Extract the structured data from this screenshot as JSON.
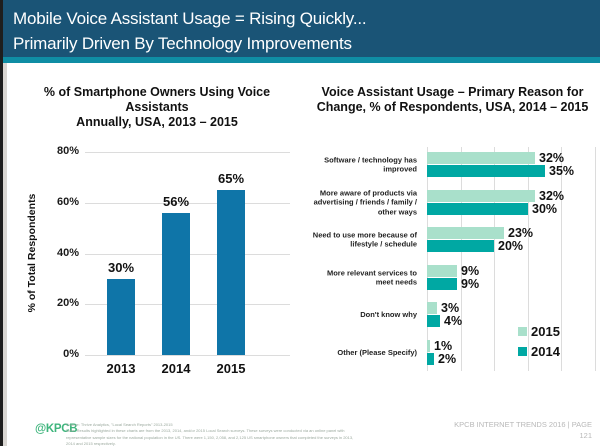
{
  "header": {
    "title_line1": "Mobile Voice Assistant Usage = Rising Quickly...",
    "title_line2": "Primarily Driven By Technology Improvements"
  },
  "colors": {
    "header_bg": "#1a5476",
    "accent_strip": "#0f8da4",
    "bar_blue": "#0f75a8",
    "series_2015_mint": "#a9e0cb",
    "series_2014_teal": "#00a8a3",
    "gridline": "#dcdcdc",
    "kpcb_green": "#3fb57d",
    "footer_gray": "#b8b8b8"
  },
  "chart_data": [
    {
      "type": "bar",
      "orientation": "vertical",
      "title": "% of Smartphone Owners Using Voice Assistants Annually, USA, 2013 – 2015",
      "title_line1": "% of Smartphone Owners Using Voice Assistants",
      "title_line2": "Annually, USA, 2013 – 2015",
      "categories": [
        "2013",
        "2014",
        "2015"
      ],
      "values": [
        30,
        56,
        65
      ],
      "value_labels": [
        "30%",
        "56%",
        "65%"
      ],
      "xlabel": "",
      "ylabel": "% of Total Respondents",
      "ylim": [
        0,
        80
      ],
      "yticks": [
        0,
        20,
        40,
        60,
        80
      ],
      "grid": true
    },
    {
      "type": "bar",
      "orientation": "horizontal",
      "title": "Voice Assistant Usage – Primary Reason for Change, % of Respondents, USA, 2014 – 2015",
      "title_line1": "Voice Assistant Usage – Primary Reason for",
      "title_line2": "Change, % of Respondents, USA, 2014 – 2015",
      "categories": [
        "Software / technology has improved",
        "More aware of products via advertising / friends / family / other ways",
        "Need to use more because of lifestyle / schedule",
        "More relevant services to meet needs",
        "Don't know why",
        "Other (Please Specify)"
      ],
      "series": [
        {
          "name": "2015",
          "color": "#a9e0cb",
          "values": [
            32,
            32,
            23,
            9,
            3,
            1
          ]
        },
        {
          "name": "2014",
          "color": "#00a8a3",
          "values": [
            35,
            30,
            20,
            9,
            4,
            2
          ]
        }
      ],
      "xlim": [
        0,
        50
      ],
      "gridline_step": 10,
      "grid": true,
      "legend_position": "bottom-right"
    }
  ],
  "footer": {
    "logo": "@KPCB",
    "source": "Source: Thrive Analytics, \"Local Search Reports\" 2013-2015",
    "note": "Note: Results highlighted in these charts are from the 2013, 2014, and/or 2015 Local Search surveys. These surveys were conducted via an online panel with representative sample sizes for the national population in the US. There were 1,150, 2,058, and 2,125 US smartphone owners that completed the surveys in 2013, 2014 and 2015 respectively.",
    "right_line1": "KPCB INTERNET TRENDS 2016   |   PAGE",
    "right_line2": "121"
  }
}
